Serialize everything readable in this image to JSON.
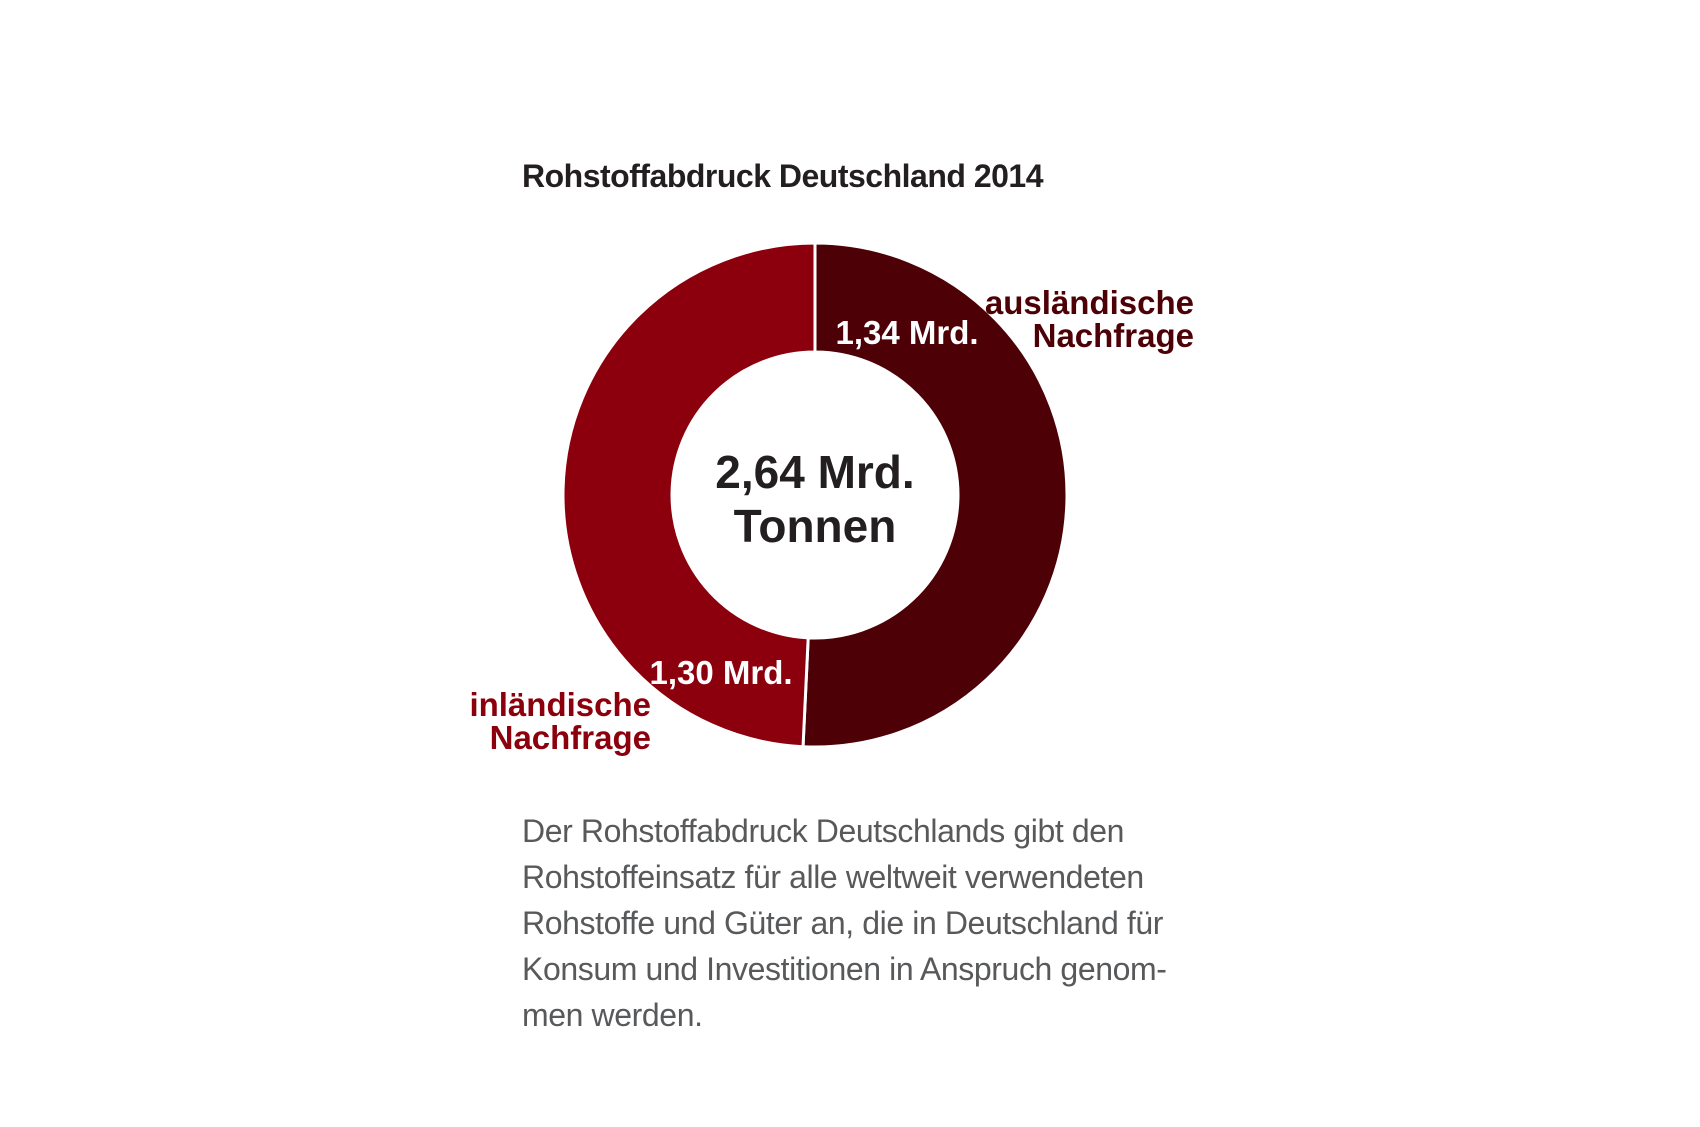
{
  "chart_data": {
    "type": "pie",
    "title": "Rohstoffabdruck Deutschland 2014",
    "center_label_lines": [
      "2,64 Mrd.",
      "Tonnen"
    ],
    "total": 2.64,
    "unit": "Mrd. Tonnen",
    "slices": [
      {
        "name_lines": [
          "ausländische",
          "Nachfrage"
        ],
        "value": 1.34,
        "value_label": "1,34 Mrd.",
        "color": "#4d0006"
      },
      {
        "name_lines": [
          "inländische",
          "Nachfrage"
        ],
        "value": 1.3,
        "value_label": "1,30 Mrd.",
        "color": "#8c000d"
      }
    ]
  },
  "description_lines": [
    "Der Rohstoffabdruck Deutschlands gibt den",
    "Rohstoffeinsatz für alle weltweit verwendeten",
    "Rohstoffe und Güter an, die in Deutschland für",
    "Konsum und Investitionen in Anspruch genom-",
    "men werden."
  ]
}
